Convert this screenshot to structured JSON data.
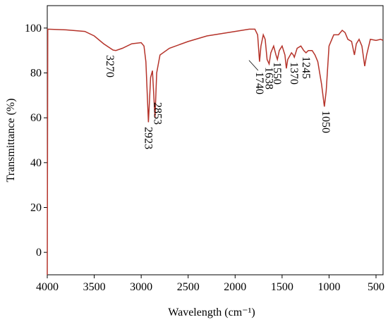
{
  "chart_data": {
    "type": "line",
    "x_label": "Wavelength (cm⁻¹)",
    "y_label": "Transmittance (%)",
    "xlim": [
      4000,
      425
    ],
    "ylim": [
      -10,
      110
    ],
    "xticks": [
      4000,
      3500,
      3000,
      2500,
      2000,
      1500,
      1000,
      500
    ],
    "yticks": [
      0,
      20,
      40,
      60,
      80,
      100
    ],
    "annotations": [
      "3270",
      "2923",
      "2853",
      "1740",
      "1638",
      "1550",
      "1370",
      "1245",
      "1050"
    ],
    "series": [
      {
        "color": "#b5332a",
        "x": [
          4000,
          3995,
          3800,
          3600,
          3500,
          3400,
          3300,
          3270,
          3200,
          3100,
          3000,
          2970,
          2950,
          2923,
          2900,
          2880,
          2853,
          2835,
          2800,
          2700,
          2500,
          2300,
          2000,
          1850,
          1790,
          1760,
          1740,
          1725,
          1700,
          1680,
          1660,
          1638,
          1620,
          1590,
          1565,
          1550,
          1530,
          1500,
          1470,
          1455,
          1440,
          1400,
          1380,
          1370,
          1340,
          1300,
          1270,
          1245,
          1220,
          1180,
          1150,
          1120,
          1080,
          1050,
          1030,
          1000,
          950,
          900,
          860,
          830,
          800,
          760,
          730,
          710,
          680,
          650,
          620,
          600,
          560,
          500,
          450,
          425
        ],
        "values": [
          -10,
          99.5,
          99.2,
          98.5,
          96.5,
          93,
          90.2,
          90,
          91,
          93,
          93.5,
          92,
          85,
          58,
          78,
          81,
          60,
          80,
          88,
          91,
          94,
          96.5,
          98.5,
          99.5,
          99.5,
          97,
          85,
          92,
          97,
          95,
          86,
          84,
          89,
          92,
          88,
          86,
          90,
          92,
          88,
          82,
          86,
          89,
          88,
          87,
          91,
          92,
          90,
          89,
          90,
          90,
          88,
          85,
          75,
          65,
          72,
          92,
          97,
          97,
          99,
          98,
          95,
          94,
          88,
          93,
          95,
          92,
          83,
          88,
          95,
          94.5,
          95,
          94.5
        ]
      }
    ]
  }
}
